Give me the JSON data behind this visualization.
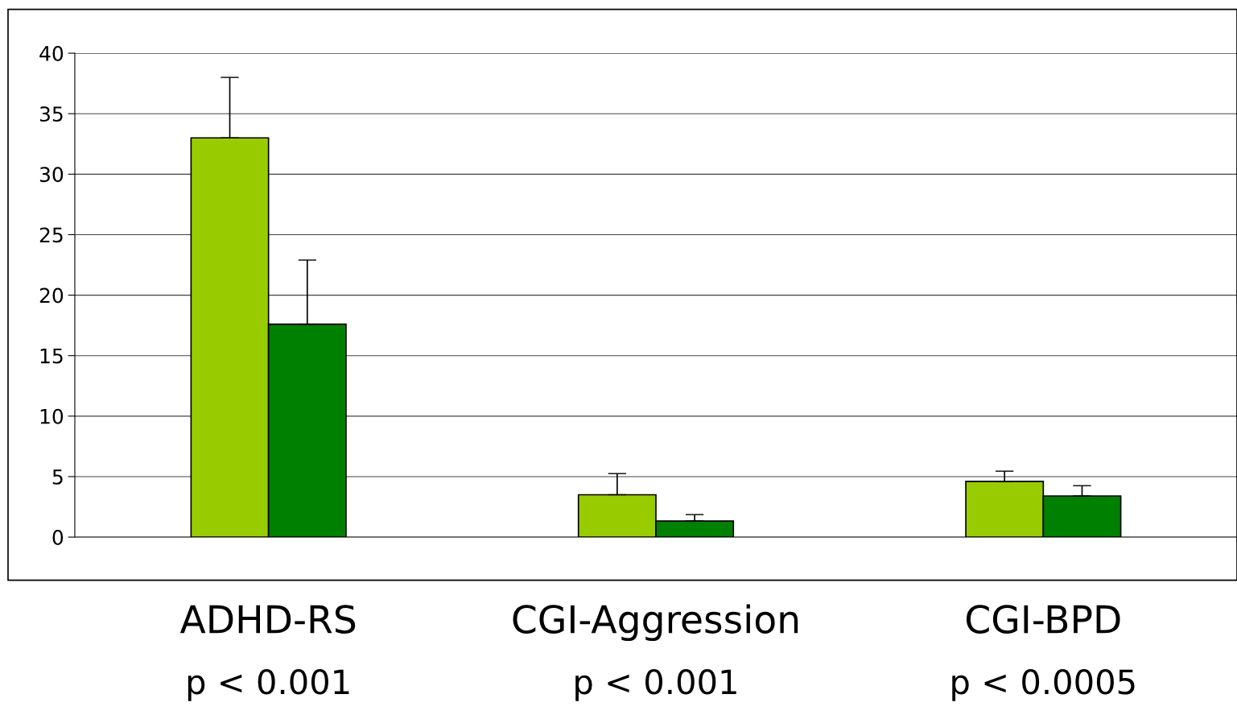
{
  "chart_data": {
    "type": "bar",
    "categories": [
      "ADHD-RS",
      "CGI-Aggression",
      "CGI-BPD"
    ],
    "series": [
      {
        "color": "#99cc00",
        "values": [
          33.0,
          3.5,
          4.6
        ],
        "errors": [
          [
            33.0,
            38.0
          ],
          [
            3.5,
            5.25
          ],
          [
            4.6,
            5.45
          ]
        ]
      },
      {
        "color": "#008000",
        "values": [
          17.6,
          1.33,
          3.4
        ],
        "errors": [
          [
            17.6,
            22.9
          ],
          [
            1.33,
            1.86
          ],
          [
            3.4,
            4.25
          ]
        ]
      }
    ],
    "ylim": [
      0,
      40
    ],
    "yticks": [
      0,
      5,
      10,
      15,
      20,
      25,
      30,
      35,
      40
    ],
    "grid": "y",
    "annotations": [
      "p < 0.001",
      "p < 0.001",
      "p < 0.0005"
    ]
  }
}
